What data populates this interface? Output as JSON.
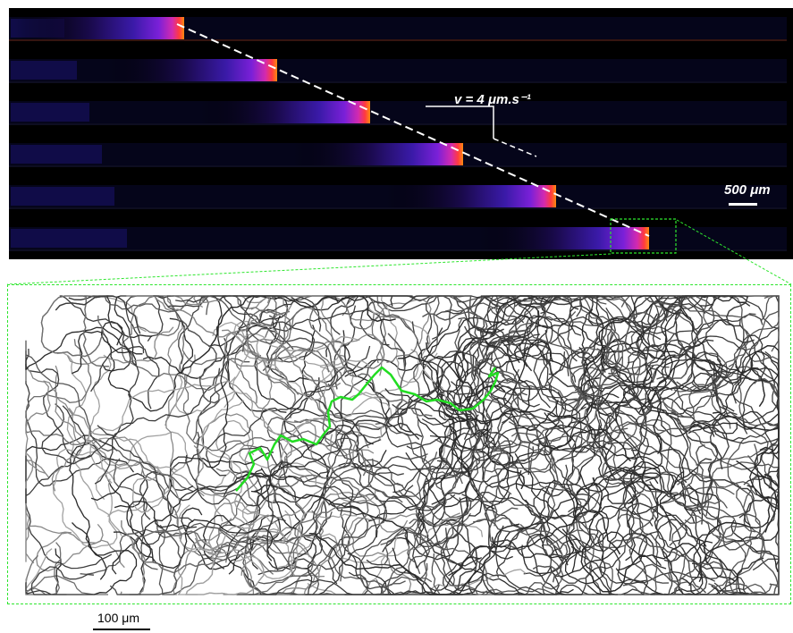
{
  "top_panel": {
    "velocity_label": "v = 4 μm.s⁻¹",
    "scale_label": "500 μm",
    "num_frames": 6,
    "colormap": [
      "#1a0a4d",
      "#3a1aa8",
      "#7a20d8",
      "#d22ab0",
      "#ff3a40",
      "#ff8a10"
    ],
    "trend_line_color": "#ffffff"
  },
  "bottom_panel": {
    "scale_label": "100 μm",
    "highlight_track_color": "#22dd22",
    "track_colors": [
      "#2a2a2a",
      "#3c3c3c",
      "#555555",
      "#6e6e6e",
      "#888888",
      "#a0a0a0"
    ],
    "zoom_outline_color": "#2ee62e"
  }
}
